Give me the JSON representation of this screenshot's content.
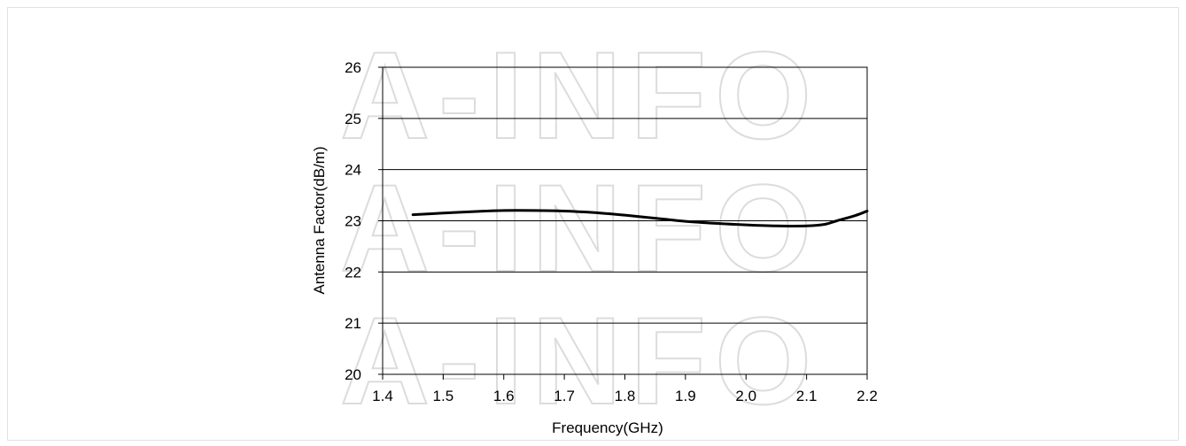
{
  "chart_data": {
    "type": "line",
    "title": "",
    "xlabel": "Frequency(GHz)",
    "ylabel": "Antenna Factor(dB/m)",
    "xlim": [
      1.4,
      2.2
    ],
    "ylim": [
      20,
      26
    ],
    "x_ticks": [
      "1.4",
      "1.5",
      "1.6",
      "1.7",
      "1.8",
      "1.9",
      "2.0",
      "2.1",
      "2.2"
    ],
    "y_ticks": [
      "20",
      "21",
      "22",
      "23",
      "24",
      "25",
      "26"
    ],
    "grid": "horizontal",
    "legend": "none",
    "series": [
      {
        "color": "#000000",
        "x": [
          1.45,
          1.5,
          1.55,
          1.6,
          1.65,
          1.7,
          1.75,
          1.8,
          1.85,
          1.9,
          1.95,
          2.0,
          2.05,
          2.1,
          2.13,
          2.15,
          2.18,
          2.2
        ],
        "y": [
          23.12,
          23.15,
          23.18,
          23.2,
          23.2,
          23.19,
          23.16,
          23.11,
          23.05,
          22.99,
          22.95,
          22.92,
          22.9,
          22.9,
          22.93,
          23.0,
          23.1,
          23.19
        ]
      }
    ]
  },
  "watermark": {
    "text": "A-INFO"
  }
}
